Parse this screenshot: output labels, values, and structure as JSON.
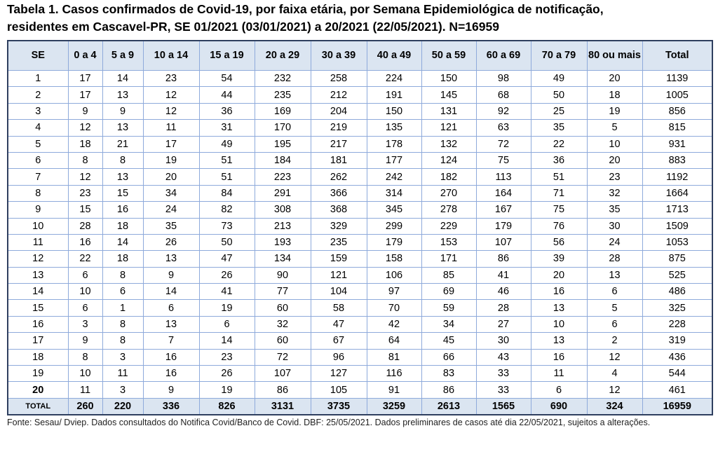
{
  "title": [
    "Tabela 1. Casos confirmados de Covid-19, por faixa etária, por Semana Epidemiológica de notificação,",
    "residentes em Cascavel-PR, SE 01/2021 (03/01/2021) a 20/2021 (22/05/2021). N=16959"
  ],
  "table": {
    "header": [
      "SE",
      "0 a 4",
      "5 a 9",
      "10 a 14",
      "15 a 19",
      "20 a 29",
      "30 a 39",
      "40 a 49",
      "50 a 59",
      "60 a 69",
      "70 a 79",
      "80 ou mais",
      "Total"
    ],
    "rows": [
      [
        1,
        17,
        14,
        23,
        54,
        232,
        258,
        224,
        150,
        98,
        49,
        20,
        1139
      ],
      [
        2,
        17,
        13,
        12,
        44,
        235,
        212,
        191,
        145,
        68,
        50,
        18,
        1005
      ],
      [
        3,
        9,
        9,
        12,
        36,
        169,
        204,
        150,
        131,
        92,
        25,
        19,
        856
      ],
      [
        4,
        12,
        13,
        11,
        31,
        170,
        219,
        135,
        121,
        63,
        35,
        5,
        815
      ],
      [
        5,
        18,
        21,
        17,
        49,
        195,
        217,
        178,
        132,
        72,
        22,
        10,
        931
      ],
      [
        6,
        8,
        8,
        19,
        51,
        184,
        181,
        177,
        124,
        75,
        36,
        20,
        883
      ],
      [
        7,
        12,
        13,
        20,
        51,
        223,
        262,
        242,
        182,
        113,
        51,
        23,
        1192
      ],
      [
        8,
        23,
        15,
        34,
        84,
        291,
        366,
        314,
        270,
        164,
        71,
        32,
        1664
      ],
      [
        9,
        15,
        16,
        24,
        82,
        308,
        368,
        345,
        278,
        167,
        75,
        35,
        1713
      ],
      [
        10,
        28,
        18,
        35,
        73,
        213,
        329,
        299,
        229,
        179,
        76,
        30,
        1509
      ],
      [
        11,
        16,
        14,
        26,
        50,
        193,
        235,
        179,
        153,
        107,
        56,
        24,
        1053
      ],
      [
        12,
        22,
        18,
        13,
        47,
        134,
        159,
        158,
        171,
        86,
        39,
        28,
        875
      ],
      [
        13,
        6,
        8,
        9,
        26,
        90,
        121,
        106,
        85,
        41,
        20,
        13,
        525
      ],
      [
        14,
        10,
        6,
        14,
        41,
        77,
        104,
        97,
        69,
        46,
        16,
        6,
        486
      ],
      [
        15,
        6,
        1,
        6,
        19,
        60,
        58,
        70,
        59,
        28,
        13,
        5,
        325
      ],
      [
        16,
        3,
        8,
        13,
        6,
        32,
        47,
        42,
        34,
        27,
        10,
        6,
        228
      ],
      [
        17,
        9,
        8,
        7,
        14,
        60,
        67,
        64,
        45,
        30,
        13,
        2,
        319
      ],
      [
        18,
        8,
        3,
        16,
        23,
        72,
        96,
        81,
        66,
        43,
        16,
        12,
        436
      ],
      [
        19,
        10,
        11,
        16,
        26,
        107,
        127,
        116,
        83,
        33,
        11,
        4,
        544
      ],
      [
        20,
        11,
        3,
        9,
        19,
        86,
        105,
        91,
        86,
        33,
        6,
        12,
        461
      ]
    ],
    "total": [
      "TOTAL",
      260,
      220,
      336,
      826,
      3131,
      3735,
      3259,
      2613,
      1565,
      690,
      324,
      16959
    ]
  },
  "footnote": "Fonte: Sesau/ Dviep. Dados consultados do Notifica Covid/Banco de Covid. DBF: 25/05/2021. Dados preliminares de casos até dia 22/05/2021, sujeitos a alterações."
}
